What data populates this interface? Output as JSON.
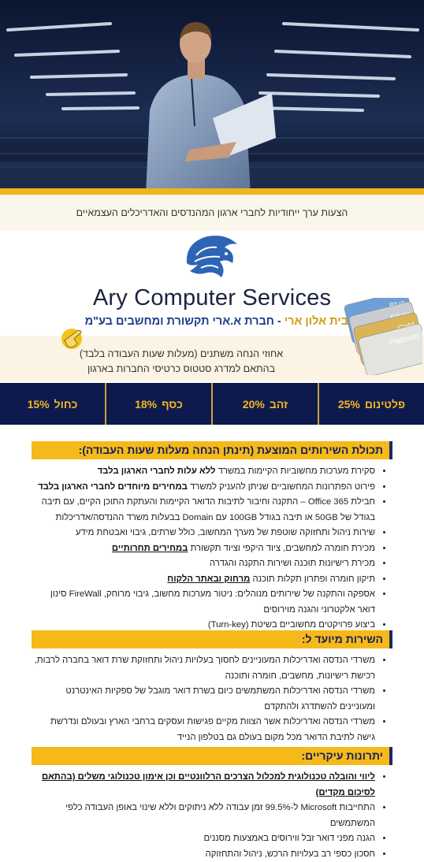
{
  "banner": "הצעות ערך ייחודיות לחברי ארגון המהנדסים והאדריכלים העצמאיים",
  "brand": {
    "name": "Ary Computer Services",
    "from": "מבית אלון ארי",
    "company": "- חברת א.ארי תקשורת ומחשבים בע\"מ"
  },
  "discount": {
    "line1": "אחוזי הנחה משתנים (מעלות שעות העבודה בלבד)",
    "line2": "בהתאם למדרג סטטוס כרטיסי החברות בארגון",
    "cards": [
      "Blue",
      "Silver",
      "Gold",
      "Platinum"
    ]
  },
  "tiers": [
    {
      "name": "פלטינום",
      "discount": "25%"
    },
    {
      "name": "זהב",
      "discount": "20%"
    },
    {
      "name": "כסף",
      "discount": "18%"
    },
    {
      "name": "כחול",
      "discount": "15%"
    }
  ],
  "sections": [
    {
      "heading": "תכולת השירותים המוצעת (תינתן הנחה מעלות שעות העבודה):",
      "items": [
        {
          "text": "סקירת מערכות מחשוביות הקיימות במשרד",
          "emphasis": "ללא עלות לחברי הארגון בלבד"
        },
        {
          "text": "פירוט הפתרונות המחשוביים שניתן להעניק למשרד",
          "emphasis": "במחירים מיוחדים לחברי הארגון בלבד"
        },
        {
          "text": "חבילת Office 365 – התקנה וחיבור לתיבות הדואר הקיימות והעתקת התוכן הקיים, עם תיבה בגודל של 50GB או תיבה בגודל 100GB עם Domain בבעלות משרד ההנדסה/אדריכלות"
        },
        {
          "text": "שירות ניהול ותחזוקה שוטפת של מערך המחשוב, כולל שרתים, גיבוי ואבטחת מידע"
        },
        {
          "text": "מכירת חומרה למחשבים, ציוד היקפי וציוד תקשורת",
          "emphasis": "במחירים תחרותיים",
          "underline": true
        },
        {
          "text": "מכירת רישיונות תוכנה ושירות התקנה והגדרה"
        },
        {
          "text": "תיקון חומרה ופתרון תקלות תוכנה",
          "emphasis": "מרחוק ובאתר הלקוח",
          "underline": true
        },
        {
          "text": "אספקה והתקנה של שירותים מנוהלים: ניטור מערכות מחשוב, גיבוי מרוחק, FireWall סינון דואר אלקטרוני והגנה מוירוסים"
        },
        {
          "text": "ביצוע פרויקטים מחשוביים בשיטת (Turn-key)"
        }
      ]
    },
    {
      "heading": "השירות מיועד ל:",
      "items": [
        {
          "text": "משרדי הנדסה ואדריכלות המעוניינים לחסוך בעלויות ניהול ותחזוקת שרת דואר בחברה לרבות, רכישת רישיונות, מחשבים, חומרה ותוכנה"
        },
        {
          "text": "משרדי הנדסה ואדריכלות המשתמשים כיום בשרת דואר מוגבל של ספקיות האינטרנט ומעוניינים להשתדרג ולהתקדם"
        },
        {
          "text": "משרדי הנדסה ואדריכלות אשר הצוות מקיים פגישות ועסקים ברחבי הארץ ובעולם ונדרשת גישה לתיבת הדואר מכל מקום בעולם גם בטלפון הנייד"
        }
      ]
    },
    {
      "heading": "יתרונות עיקריים:",
      "items": [
        {
          "emphasis": "ליווי והובלה טכנולוגית למכלול הצרכים הרלוונטיים וכן אימון טכנולוגי משלים (בהתאם לסיכום מקדים)",
          "underline": true
        },
        {
          "text": "התחייבות Microsoft ל-99.5% זמן עבודה ללא ניתוקים וללא שינוי באופן העבודה כלפי המשתמשים"
        },
        {
          "text": "הגנה מפני דואר זבל ווירוסים באמצעות מסננים"
        },
        {
          "text": "חסכון כספי רב בעלויות הרכש, ניהול והתחזוקה"
        }
      ]
    }
  ]
}
